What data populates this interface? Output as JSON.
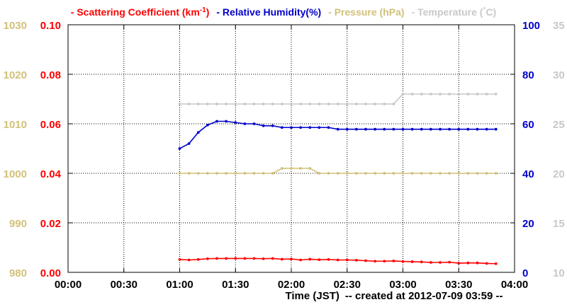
{
  "chart_data": {
    "type": "line",
    "legend": [
      {
        "dash": "-",
        "text": "Scattering Coefficient (km",
        "sup": "-1",
        "close": ")",
        "color": "#ff0000"
      },
      {
        "dash": "-",
        "text": "Relative Humidity(%)",
        "sup": "",
        "close": "",
        "color": "#0000cc"
      },
      {
        "dash": "-",
        "text": "Pressure (hPa)",
        "sup": "",
        "close": "",
        "color": "#d2c17a"
      },
      {
        "dash": "-",
        "text": "Temperature (",
        "sup": "°",
        "close": "C)",
        "color": "#c8c8c8"
      }
    ],
    "xlabel": "Time (JST)",
    "footer": "-- created at 2012-07-09 03:59 --",
    "x_ticks": [
      "00:00",
      "00:30",
      "01:00",
      "01:30",
      "02:00",
      "02:30",
      "03:00",
      "03:30",
      "04:00"
    ],
    "xlim_minutes": [
      0,
      240
    ],
    "axes": {
      "pressure": {
        "ticks": [
          "980",
          "990",
          "1000",
          "1010",
          "1020",
          "1030"
        ],
        "ylim": [
          980,
          1030
        ],
        "color": "#d2c17a"
      },
      "scattering": {
        "ticks": [
          "0.00",
          "0.02",
          "0.04",
          "0.06",
          "0.08",
          "0.10"
        ],
        "ylim": [
          0,
          0.1
        ],
        "color": "#ff0000"
      },
      "humidity": {
        "ticks": [
          "0",
          "20",
          "40",
          "60",
          "80",
          "100"
        ],
        "ylim": [
          0,
          100
        ],
        "color": "#0000cc"
      },
      "temperature": {
        "ticks": [
          "10",
          "15",
          "20",
          "25",
          "30",
          "35"
        ],
        "ylim": [
          10,
          35
        ],
        "color": "#c8c8c8"
      }
    },
    "series": [
      {
        "name": "Temperature",
        "axis": "temperature",
        "color": "#c8c8c8",
        "x": [
          60,
          65,
          70,
          75,
          80,
          85,
          90,
          95,
          100,
          105,
          110,
          115,
          120,
          125,
          130,
          135,
          140,
          145,
          150,
          155,
          160,
          165,
          170,
          175,
          180,
          185,
          190,
          195,
          200,
          205,
          210,
          215,
          220,
          225,
          230
        ],
        "y": [
          27,
          27,
          27,
          27,
          27,
          27,
          27,
          27,
          27,
          27,
          27,
          27,
          27,
          27,
          27,
          27,
          27,
          27,
          27,
          27,
          27,
          27,
          27,
          27,
          28,
          28,
          28,
          28,
          28,
          28,
          28,
          28,
          28,
          28,
          28
        ]
      },
      {
        "name": "Pressure",
        "axis": "pressure",
        "color": "#d2c17a",
        "x": [
          60,
          65,
          70,
          75,
          80,
          85,
          90,
          95,
          100,
          105,
          110,
          115,
          120,
          125,
          130,
          135,
          140,
          145,
          150,
          155,
          160,
          165,
          170,
          175,
          180,
          185,
          190,
          195,
          200,
          205,
          210,
          215,
          220,
          225,
          230
        ],
        "y": [
          1000,
          1000,
          1000,
          1000,
          1000,
          1000,
          1000,
          1000,
          1000,
          1000,
          1000,
          1001,
          1001,
          1001,
          1001,
          1000,
          1000,
          1000,
          1000,
          1000,
          1000,
          1000,
          1000,
          1000,
          1000,
          1000,
          1000,
          1000,
          1000,
          1000,
          1000,
          1000,
          1000,
          1000,
          1000
        ]
      },
      {
        "name": "Relative Humidity",
        "axis": "humidity",
        "color": "#0000cc",
        "x": [
          60,
          65,
          70,
          75,
          80,
          85,
          90,
          95,
          100,
          105,
          110,
          115,
          120,
          125,
          130,
          135,
          140,
          145,
          150,
          155,
          160,
          165,
          170,
          175,
          180,
          185,
          190,
          195,
          200,
          205,
          210,
          215,
          220,
          225,
          230
        ],
        "y": [
          50,
          52,
          56.5,
          59.5,
          61,
          61,
          60.5,
          60,
          60,
          59.2,
          59.2,
          58.5,
          58.5,
          58.5,
          58.5,
          58.5,
          58.5,
          57.8,
          57.8,
          57.8,
          57.8,
          57.8,
          57.8,
          57.8,
          57.8,
          57.8,
          57.8,
          57.8,
          57.8,
          57.8,
          57.8,
          57.8,
          57.8,
          57.8,
          57.8
        ]
      },
      {
        "name": "Scattering Coefficient",
        "axis": "scattering",
        "color": "#ff0000",
        "x": [
          60,
          65,
          70,
          75,
          80,
          85,
          90,
          95,
          100,
          105,
          110,
          115,
          120,
          125,
          130,
          135,
          140,
          145,
          150,
          155,
          160,
          165,
          170,
          175,
          180,
          185,
          190,
          195,
          200,
          205,
          210,
          215,
          220,
          225,
          230
        ],
        "y": [
          0.0052,
          0.005,
          0.0052,
          0.0055,
          0.0056,
          0.0056,
          0.0056,
          0.0056,
          0.0056,
          0.0055,
          0.0056,
          0.0053,
          0.0054,
          0.005,
          0.0053,
          0.0051,
          0.0052,
          0.005,
          0.005,
          0.0049,
          0.0047,
          0.0045,
          0.0045,
          0.0046,
          0.0044,
          0.0043,
          0.0042,
          0.004,
          0.004,
          0.0041,
          0.0037,
          0.0038,
          0.0038,
          0.0036,
          0.0035
        ]
      }
    ]
  }
}
